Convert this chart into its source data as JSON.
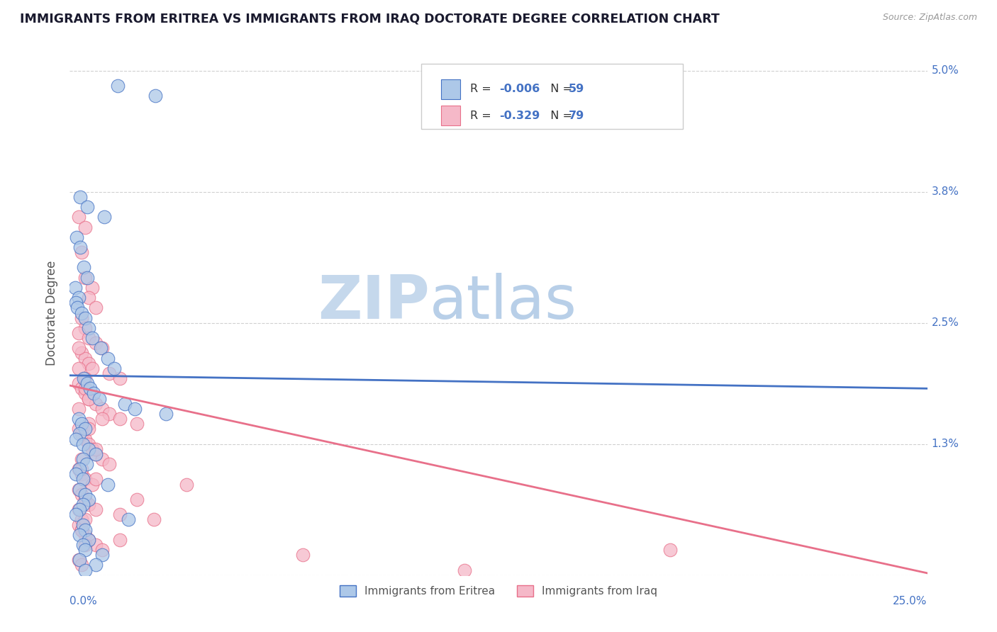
{
  "title": "IMMIGRANTS FROM ERITREA VS IMMIGRANTS FROM IRAQ DOCTORATE DEGREE CORRELATION CHART",
  "source": "Source: ZipAtlas.com",
  "ylabel": "Doctorate Degree",
  "xlim": [
    0.0,
    25.0
  ],
  "ylim": [
    0.0,
    5.2
  ],
  "ytick_values": [
    0.0,
    1.3,
    2.5,
    3.8,
    5.0
  ],
  "ytick_labels": [
    "",
    "1.3%",
    "2.5%",
    "3.8%",
    "5.0%"
  ],
  "legend_eritrea": "Immigrants from Eritrea",
  "legend_iraq": "Immigrants from Iraq",
  "R_eritrea": "-0.006",
  "N_eritrea": "59",
  "R_iraq": "-0.329",
  "N_iraq": "79",
  "color_eritrea": "#adc8e8",
  "color_iraq": "#f5b8c8",
  "line_color_eritrea": "#4472c4",
  "line_color_iraq": "#e8708a",
  "background_color": "#ffffff",
  "grid_color": "#d0d0d0",
  "watermark_color": "#c8d8e8",
  "text_color_blue": "#4472c4",
  "eritrea_x": [
    1.4,
    2.5,
    0.3,
    0.5,
    1.0,
    0.2,
    0.3,
    0.4,
    0.5,
    0.15,
    0.25,
    0.18,
    0.22,
    0.35,
    0.45,
    0.55,
    0.65,
    0.9,
    1.1,
    1.3,
    0.4,
    0.5,
    0.6,
    0.7,
    0.85,
    1.6,
    1.9,
    2.8,
    0.25,
    0.35,
    0.45,
    0.28,
    0.18,
    0.38,
    0.55,
    0.75,
    0.38,
    0.48,
    0.28,
    0.18,
    0.38,
    1.1,
    0.28,
    0.45,
    0.55,
    0.38,
    0.28,
    0.18,
    1.7,
    0.38,
    0.45,
    0.28,
    0.55,
    0.38,
    0.45,
    0.95,
    0.28,
    0.75,
    0.45
  ],
  "eritrea_y": [
    4.85,
    4.75,
    3.75,
    3.65,
    3.55,
    3.35,
    3.25,
    3.05,
    2.95,
    2.85,
    2.75,
    2.7,
    2.65,
    2.6,
    2.55,
    2.45,
    2.35,
    2.25,
    2.15,
    2.05,
    1.95,
    1.9,
    1.85,
    1.8,
    1.75,
    1.7,
    1.65,
    1.6,
    1.55,
    1.5,
    1.45,
    1.4,
    1.35,
    1.3,
    1.25,
    1.2,
    1.15,
    1.1,
    1.05,
    1.0,
    0.95,
    0.9,
    0.85,
    0.8,
    0.75,
    0.7,
    0.65,
    0.6,
    0.55,
    0.5,
    0.45,
    0.4,
    0.35,
    0.3,
    0.25,
    0.2,
    0.15,
    0.1,
    0.05
  ],
  "iraq_x": [
    0.25,
    0.45,
    0.35,
    0.45,
    0.65,
    0.55,
    0.75,
    0.35,
    0.45,
    0.25,
    0.55,
    0.75,
    0.95,
    0.35,
    0.45,
    0.55,
    0.65,
    1.15,
    1.45,
    0.25,
    0.35,
    0.45,
    0.55,
    0.75,
    0.95,
    1.15,
    1.45,
    1.95,
    0.25,
    0.35,
    0.45,
    0.55,
    0.65,
    0.75,
    0.95,
    1.15,
    0.25,
    0.35,
    0.45,
    3.4,
    0.25,
    0.35,
    0.45,
    0.55,
    0.75,
    1.45,
    2.45,
    0.25,
    0.35,
    0.45,
    0.55,
    0.75,
    0.95,
    6.8,
    0.25,
    0.35,
    11.5,
    0.25,
    0.45,
    0.55,
    0.65,
    0.35,
    0.45,
    0.25,
    0.55,
    0.75,
    0.35,
    0.45,
    0.95,
    0.75,
    1.95,
    1.45,
    0.45,
    0.25,
    0.35,
    0.55,
    17.5,
    0.25,
    0.35
  ],
  "iraq_y": [
    3.55,
    3.45,
    3.2,
    2.95,
    2.85,
    2.75,
    2.65,
    2.55,
    2.45,
    2.4,
    2.35,
    2.3,
    2.25,
    2.2,
    2.15,
    2.1,
    2.05,
    2.0,
    1.95,
    1.9,
    1.85,
    1.8,
    1.75,
    1.7,
    1.65,
    1.6,
    1.55,
    1.5,
    1.45,
    1.4,
    1.35,
    1.3,
    1.25,
    1.2,
    1.15,
    1.1,
    1.05,
    1.0,
    0.95,
    0.9,
    0.85,
    0.8,
    0.75,
    0.7,
    0.65,
    0.6,
    0.55,
    0.5,
    0.45,
    0.4,
    0.35,
    0.3,
    0.25,
    0.2,
    0.15,
    0.1,
    0.05,
    2.05,
    1.85,
    1.5,
    0.9,
    0.55,
    0.3,
    2.25,
    1.75,
    0.95,
    0.45,
    1.95,
    1.55,
    1.25,
    0.75,
    0.35,
    0.55,
    1.65,
    1.05,
    1.45,
    0.25,
    0.65,
    1.15
  ],
  "line_e_x0": 0.0,
  "line_e_y0": 1.98,
  "line_e_x1": 25.0,
  "line_e_y1": 1.85,
  "line_i_x0": 0.0,
  "line_i_y0": 1.88,
  "line_i_x1": 25.0,
  "line_i_y1": 0.02
}
